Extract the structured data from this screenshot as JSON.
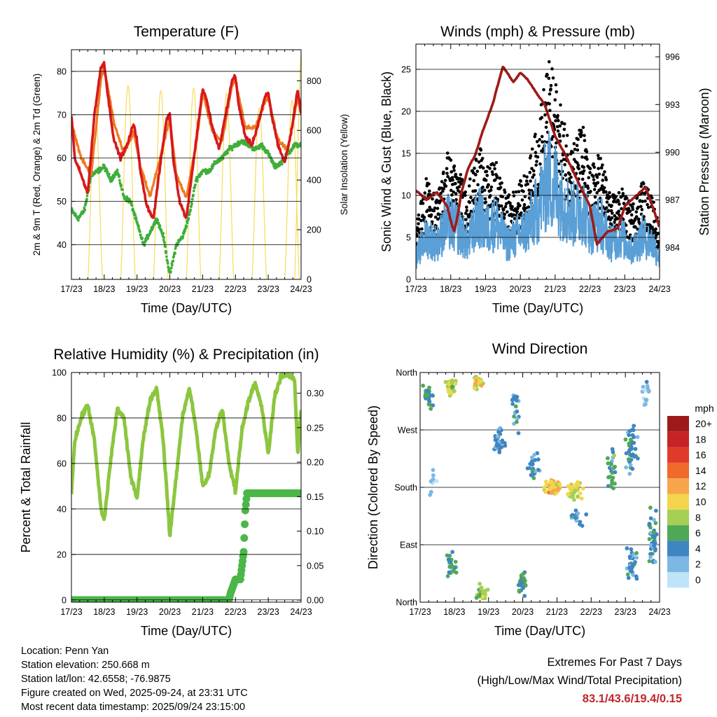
{
  "days": [
    "17/23",
    "18/23",
    "19/23",
    "20/23",
    "21/23",
    "22/23",
    "23/23",
    "24/23"
  ],
  "xlabel": "Time (Day/UTC)",
  "colors": {
    "temp2m": "#d7191c",
    "temp9m": "#f07a1f",
    "dewpoint": "#3fae3a",
    "solar": "#f6dc5a",
    "gust": "#000000",
    "wind": "#5a9fd6",
    "pressure": "#a01a1a",
    "rh": "#8cc63f",
    "precip": "#4bb748"
  },
  "chart_data": [
    {
      "id": "temperature",
      "type": "line",
      "title": "Temperature (F)",
      "ylabel": "2m & 9m T (Red, Orange) & 2m Td (Green)",
      "y2label": "Solar Insolation (Yellow)",
      "ylim": [
        32,
        85
      ],
      "yticks": [
        40,
        50,
        60,
        70,
        80
      ],
      "y2lim": [
        0,
        925
      ],
      "y2ticks": [
        0,
        200,
        400,
        600,
        800
      ],
      "series": [
        {
          "name": "2m T",
          "color": "#d7191c",
          "x": [
            0,
            0.1,
            0.3,
            0.5,
            0.7,
            0.9,
            1.0,
            1.1,
            1.3,
            1.5,
            1.7,
            1.9,
            2.0,
            2.1,
            2.3,
            2.5,
            2.7,
            2.9,
            3.0,
            3.1,
            3.3,
            3.5,
            3.7,
            3.9,
            4.0,
            4.1,
            4.3,
            4.5,
            4.7,
            4.9,
            5.0,
            5.1,
            5.3,
            5.5,
            5.7,
            5.9,
            6.0,
            6.1,
            6.3,
            6.5,
            6.7,
            6.9,
            7.0
          ],
          "y": [
            70,
            60,
            56,
            52,
            70,
            81,
            82,
            75,
            64,
            60,
            63,
            68,
            64,
            57,
            49,
            46,
            58,
            69,
            70,
            60,
            50,
            46,
            58,
            70,
            76,
            74,
            67,
            62,
            70,
            78,
            79,
            72,
            65,
            63,
            68,
            74,
            75,
            70,
            63,
            59,
            66,
            76,
            70
          ]
        },
        {
          "name": "9m T",
          "color": "#f07a1f",
          "x": [
            0,
            0.3,
            0.6,
            0.9,
            1.0,
            1.3,
            1.6,
            1.9,
            2.1,
            2.4,
            2.7,
            3.0,
            3.2,
            3.5,
            3.8,
            4.0,
            4.3,
            4.6,
            4.9,
            5.0,
            5.3,
            5.6,
            5.9,
            6.0,
            6.3,
            6.6,
            6.9,
            7.0
          ],
          "y": [
            68,
            60,
            56,
            78,
            81,
            68,
            61,
            66,
            58,
            51,
            60,
            69,
            56,
            51,
            63,
            75,
            66,
            64,
            77,
            78,
            67,
            67,
            73,
            74,
            64,
            62,
            74,
            70
          ]
        },
        {
          "name": "2m Td",
          "color": "#3fae3a",
          "x": [
            0,
            0.2,
            0.4,
            0.6,
            0.8,
            1.0,
            1.2,
            1.4,
            1.6,
            1.8,
            2.0,
            2.2,
            2.4,
            2.6,
            2.8,
            3.0,
            3.2,
            3.4,
            3.6,
            3.8,
            4.0,
            4.2,
            4.4,
            4.6,
            4.8,
            5.0,
            5.2,
            5.4,
            5.6,
            5.8,
            6.0,
            6.2,
            6.4,
            6.6,
            6.8,
            7.0
          ],
          "y": [
            48,
            46,
            48,
            56,
            57,
            58,
            55,
            57,
            51,
            50,
            45,
            40,
            43,
            46,
            42,
            33,
            40,
            42,
            47,
            55,
            57,
            57,
            59,
            60,
            62,
            63,
            64,
            63,
            62,
            63,
            61,
            58,
            59,
            61,
            63,
            63
          ]
        }
      ],
      "solar": [
        {
          "start": 0.5,
          "peak": 700
        },
        {
          "start": 1.5,
          "peak": 780
        },
        {
          "start": 2.5,
          "peak": 760
        },
        {
          "start": 3.5,
          "peak": 770
        },
        {
          "start": 4.5,
          "peak": 750
        },
        {
          "start": 5.5,
          "peak": 690
        },
        {
          "start": 6.5,
          "peak": 720
        },
        {
          "start": 6.8,
          "peak": 930
        }
      ]
    },
    {
      "id": "winds",
      "type": "line",
      "title": "Winds (mph) & Pressure (mb)",
      "ylabel": "Sonic Wind & Gust (Blue, Black)",
      "y2label": "Station Pressure (Maroon)",
      "ylim": [
        0,
        28
      ],
      "yticks": [
        0,
        5,
        10,
        15,
        20,
        25
      ],
      "y2lim": [
        982.0,
        996.8
      ],
      "y2ticks": [
        984,
        987,
        990,
        993,
        996
      ],
      "gust": {
        "x": [
          0,
          0.3,
          0.6,
          0.9,
          1.2,
          1.5,
          1.8,
          2.0,
          2.3,
          2.6,
          2.9,
          3.2,
          3.5,
          3.8,
          4.0,
          4.2,
          4.5,
          4.8,
          5.0,
          5.3,
          5.6,
          5.9,
          6.2,
          6.5,
          6.8,
          7.0
        ],
        "y": [
          6,
          11,
          9,
          14,
          12,
          10,
          15,
          12,
          13,
          9,
          10,
          12,
          17,
          24,
          22,
          18,
          15,
          17,
          12,
          14,
          9,
          10,
          8,
          11,
          9,
          6
        ]
      },
      "wind": {
        "x": [
          0,
          0.3,
          0.6,
          0.9,
          1.2,
          1.5,
          1.8,
          2.0,
          2.3,
          2.6,
          2.9,
          3.2,
          3.5,
          3.8,
          4.0,
          4.2,
          4.5,
          4.8,
          5.0,
          5.3,
          5.6,
          5.9,
          6.2,
          6.5,
          6.8,
          7.0
        ],
        "y": [
          3,
          6,
          5,
          8,
          7,
          5,
          9,
          7,
          8,
          5,
          6,
          7,
          10,
          14,
          13,
          11,
          9,
          10,
          7,
          8,
          5,
          6,
          4,
          6,
          5,
          3
        ]
      },
      "pressure": {
        "x": [
          0,
          0.3,
          0.6,
          0.9,
          1.0,
          1.1,
          1.2,
          1.3,
          1.5,
          1.7,
          1.9,
          2.2,
          2.5,
          2.8,
          3.0,
          3.2,
          3.5,
          3.7,
          4.0,
          4.3,
          4.6,
          5.0,
          5.2,
          5.5,
          5.8,
          6.0,
          6.3,
          6.6,
          7.0
        ],
        "y": [
          987.6,
          987.0,
          987.5,
          986.6,
          985.7,
          985.0,
          986.0,
          987.4,
          989.0,
          989.8,
          991.2,
          993.0,
          995.4,
          994.4,
          995.0,
          994.6,
          993.6,
          993.0,
          991.0,
          989.8,
          988.4,
          986.6,
          984.2,
          985.0,
          985.2,
          986.6,
          987.2,
          987.8,
          985.3
        ]
      }
    },
    {
      "id": "humidity",
      "type": "line",
      "title": "Relative Humidity (%) & Precipitation (in)",
      "ylabel": "Percent & Total Rainfall",
      "ylim": [
        -1,
        100
      ],
      "yticks": [
        0,
        20,
        40,
        60,
        80,
        100
      ],
      "y2lim": [
        -0.003,
        0.33
      ],
      "y2ticks": [
        0.0,
        0.05,
        0.1,
        0.15,
        0.2,
        0.25,
        0.3
      ],
      "rh": {
        "x": [
          0,
          0.1,
          0.3,
          0.5,
          0.7,
          0.9,
          1.0,
          1.2,
          1.4,
          1.6,
          1.8,
          2.0,
          2.2,
          2.4,
          2.6,
          2.8,
          3.0,
          3.2,
          3.4,
          3.6,
          3.8,
          4.0,
          4.2,
          4.4,
          4.6,
          4.8,
          5.0,
          5.2,
          5.4,
          5.6,
          5.8,
          6.0,
          6.2,
          6.4,
          6.6,
          6.8,
          6.9,
          7.0
        ],
        "y": [
          47,
          70,
          80,
          86,
          70,
          40,
          35,
          62,
          84,
          80,
          55,
          45,
          72,
          88,
          93,
          70,
          28,
          55,
          82,
          93,
          75,
          50,
          55,
          75,
          84,
          60,
          48,
          75,
          88,
          95,
          85,
          64,
          90,
          99,
          99,
          97,
          64,
          84
        ]
      },
      "precip": {
        "x": [
          0,
          4.8,
          4.85,
          5.0,
          5.15,
          5.25,
          5.3,
          5.35,
          7.0
        ],
        "y": [
          0,
          0,
          0.01,
          0.03,
          0.03,
          0.07,
          0.13,
          0.155,
          0.155
        ]
      }
    },
    {
      "id": "direction",
      "type": "scatter",
      "title": "Wind Direction",
      "ylabel": "Direction (Colored By Speed)",
      "ylim": [
        0,
        360
      ],
      "yticks": [
        "North",
        "East",
        "South",
        "West",
        "North"
      ],
      "legend_title": "mph",
      "legend_labels": [
        "20+",
        "18",
        "16",
        "14",
        "12",
        "10",
        "8",
        "6",
        "4",
        "2",
        "0"
      ],
      "legend_colors": [
        "#9e1a1a",
        "#c62326",
        "#e03a2b",
        "#ef6a2c",
        "#f7a54c",
        "#f3d64b",
        "#a6cf55",
        "#4fa857",
        "#3f85c1",
        "#7db7e3",
        "#bfe3f7"
      ],
      "clusters": [
        {
          "x": 0.25,
          "y": 320,
          "n": 28,
          "dx": 0.25,
          "dy": 30,
          "spd": 5
        },
        {
          "x": 0.35,
          "y": 190,
          "n": 10,
          "dx": 0.25,
          "dy": 40,
          "spd": 2
        },
        {
          "x": 0.9,
          "y": 340,
          "n": 30,
          "dx": 0.2,
          "dy": 20,
          "spd": 9
        },
        {
          "x": 0.9,
          "y": 60,
          "n": 25,
          "dx": 0.25,
          "dy": 25,
          "spd": 5
        },
        {
          "x": 1.7,
          "y": 345,
          "n": 30,
          "dx": 0.18,
          "dy": 15,
          "spd": 9
        },
        {
          "x": 1.8,
          "y": 15,
          "n": 30,
          "dx": 0.25,
          "dy": 15,
          "spd": 8
        },
        {
          "x": 2.3,
          "y": 250,
          "n": 30,
          "dx": 0.3,
          "dy": 30,
          "spd": 4
        },
        {
          "x": 2.8,
          "y": 300,
          "n": 20,
          "dx": 0.2,
          "dy": 50,
          "spd": 4
        },
        {
          "x": 3.0,
          "y": 30,
          "n": 30,
          "dx": 0.2,
          "dy": 25,
          "spd": 5
        },
        {
          "x": 3.3,
          "y": 210,
          "n": 25,
          "dx": 0.25,
          "dy": 30,
          "spd": 4
        },
        {
          "x": 3.9,
          "y": 180,
          "n": 60,
          "dx": 0.35,
          "dy": 15,
          "spd": 11
        },
        {
          "x": 4.5,
          "y": 175,
          "n": 45,
          "dx": 0.35,
          "dy": 20,
          "spd": 9
        },
        {
          "x": 4.6,
          "y": 130,
          "n": 15,
          "dx": 0.3,
          "dy": 30,
          "spd": 3
        },
        {
          "x": 5.6,
          "y": 210,
          "n": 25,
          "dx": 0.2,
          "dy": 50,
          "spd": 5
        },
        {
          "x": 6.2,
          "y": 240,
          "n": 40,
          "dx": 0.3,
          "dy": 50,
          "spd": 4
        },
        {
          "x": 6.2,
          "y": 60,
          "n": 30,
          "dx": 0.25,
          "dy": 35,
          "spd": 4
        },
        {
          "x": 6.8,
          "y": 100,
          "n": 40,
          "dx": 0.2,
          "dy": 60,
          "spd": 4
        },
        {
          "x": 6.6,
          "y": 330,
          "n": 15,
          "dx": 0.2,
          "dy": 30,
          "spd": 2
        }
      ]
    }
  ],
  "info": {
    "location": "Location: Penn Yan",
    "elevation": "Station elevation: 250.668 m",
    "latlon": "Station lat/lon: 42.6558; -76.9875",
    "created": "Figure created on Wed, 2025-09-24, at 23:31 UTC",
    "recent": "Most recent data timestamp: 2025/09/24 23:15:00"
  },
  "extremes": {
    "title": "Extremes For Past 7 Days",
    "subtitle": "(High/Low/Max Wind/Total Precipitation)",
    "values": "83.1/43.6/19.4/0.15"
  }
}
